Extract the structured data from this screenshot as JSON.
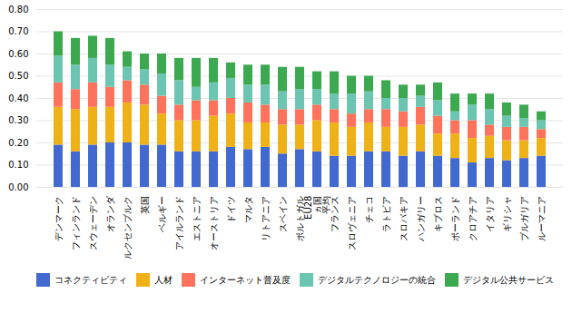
{
  "chart_data": {
    "type": "bar",
    "stacked": true,
    "categories": [
      "デンマーク",
      "フィンランド",
      "スウェーデン",
      "オランダ",
      "ルクセンブルク",
      "英国",
      "ベルギー",
      "アイルランド",
      "エストニア",
      "オーストリア",
      "ドイツ",
      "マルタ",
      "リトアニア",
      "スペイン",
      "ポルトガル",
      "EU28\nヵ国\n平均",
      "フランス",
      "スロヴェニア",
      "チェコ",
      "ラトビア",
      "スロバキア",
      "ハンガリー",
      "キプロス",
      "ポーランド",
      "クロアチア",
      "イタリア",
      "ギリシャ",
      "ブルガリア",
      "ルーマニア"
    ],
    "series": [
      {
        "name": "コネクティビティ",
        "values": [
          0.19,
          0.16,
          0.19,
          0.2,
          0.2,
          0.19,
          0.19,
          0.16,
          0.16,
          0.16,
          0.18,
          0.17,
          0.18,
          0.15,
          0.17,
          0.16,
          0.14,
          0.14,
          0.16,
          0.16,
          0.14,
          0.16,
          0.14,
          0.13,
          0.11,
          0.13,
          0.12,
          0.13,
          0.14
        ]
      },
      {
        "name": "人材",
        "values": [
          0.17,
          0.19,
          0.17,
          0.16,
          0.18,
          0.18,
          0.14,
          0.14,
          0.14,
          0.16,
          0.15,
          0.12,
          0.11,
          0.13,
          0.11,
          0.14,
          0.15,
          0.13,
          0.13,
          0.11,
          0.13,
          0.12,
          0.1,
          0.11,
          0.11,
          0.1,
          0.09,
          0.08,
          0.08
        ]
      },
      {
        "name": "インターネット普及度",
        "values": [
          0.11,
          0.09,
          0.11,
          0.09,
          0.1,
          0.09,
          0.08,
          0.07,
          0.09,
          0.07,
          0.07,
          0.09,
          0.08,
          0.07,
          0.07,
          0.07,
          0.06,
          0.06,
          0.06,
          0.08,
          0.07,
          0.08,
          0.08,
          0.06,
          0.08,
          0.05,
          0.06,
          0.06,
          0.04
        ]
      },
      {
        "name": "デジタルテクノロジーの統合",
        "values": [
          0.12,
          0.11,
          0.11,
          0.1,
          0.06,
          0.07,
          0.1,
          0.11,
          0.06,
          0.08,
          0.09,
          0.08,
          0.09,
          0.08,
          0.09,
          0.07,
          0.07,
          0.09,
          0.08,
          0.05,
          0.06,
          0.05,
          0.07,
          0.04,
          0.07,
          0.07,
          0.05,
          0.04,
          0.04
        ]
      },
      {
        "name": "デジタル公共サービス",
        "values": [
          0.11,
          0.12,
          0.1,
          0.12,
          0.07,
          0.07,
          0.09,
          0.1,
          0.13,
          0.11,
          0.07,
          0.09,
          0.09,
          0.11,
          0.1,
          0.08,
          0.1,
          0.08,
          0.07,
          0.08,
          0.06,
          0.05,
          0.08,
          0.08,
          0.05,
          0.07,
          0.06,
          0.06,
          0.04
        ]
      }
    ],
    "ylim": [
      0.0,
      0.8
    ],
    "yticks": [
      {
        "value": 0.0,
        "label": "0.00"
      },
      {
        "value": 0.1,
        "label": "0.10"
      },
      {
        "value": 0.2,
        "label": "0.20"
      },
      {
        "value": 0.3,
        "label": "0.30"
      },
      {
        "value": 0.4,
        "label": "0.40"
      },
      {
        "value": 0.5,
        "label": "0.50"
      },
      {
        "value": 0.6,
        "label": "0.60"
      },
      {
        "value": 0.7,
        "label": "0.70"
      },
      {
        "value": 0.8,
        "label": "0.80"
      }
    ],
    "grid": true,
    "legend": "bottom"
  }
}
